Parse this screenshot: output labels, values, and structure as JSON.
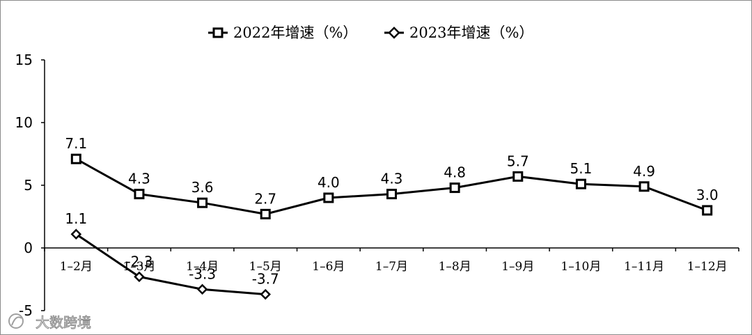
{
  "chart_data": {
    "type": "line",
    "title": "",
    "xlabel": "",
    "ylabel": "",
    "ylim": [
      -5,
      15
    ],
    "yticks": [
      -5,
      0,
      5,
      10,
      15
    ],
    "grid": false,
    "legend_position": "top",
    "categories": [
      "1–2月",
      "1–3月",
      "1–4月",
      "1–5月",
      "1–6月",
      "1–7月",
      "1–8月",
      "1–9月",
      "1–10月",
      "1–11月",
      "1–12月"
    ],
    "series": [
      {
        "name": "2022年增速（%）",
        "marker": "square",
        "color": "#000000",
        "values": [
          7.1,
          4.3,
          3.6,
          2.7,
          4.0,
          4.3,
          4.8,
          5.7,
          5.1,
          4.9,
          3.0
        ],
        "labels": [
          "7.1",
          "4.3",
          "3.6",
          "2.7",
          "4.0",
          "4.3",
          "4.8",
          "5.7",
          "5.1",
          "4.9",
          "3.0"
        ]
      },
      {
        "name": "2023年增速（%）",
        "marker": "diamond",
        "color": "#000000",
        "values": [
          1.1,
          -2.3,
          -3.3,
          -3.7,
          null,
          null,
          null,
          null,
          null,
          null,
          null
        ],
        "labels": [
          "1.1",
          "-2.3",
          "-3.3",
          "-3.7"
        ]
      }
    ]
  },
  "watermark": {
    "text": "大数跨境",
    "icon": "watermark-logo-icon"
  }
}
